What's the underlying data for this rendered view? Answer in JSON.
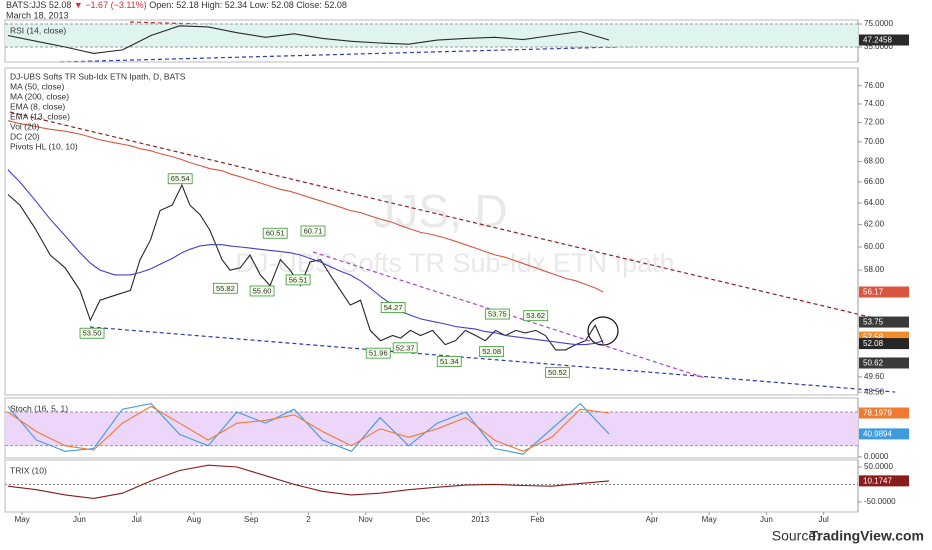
{
  "header": {
    "symbol": "BATS:JJS 52.08",
    "change": "▼ −1.67 (−3.11%)",
    "ohlc": "Open: 52.18  High: 52.34  Low: 52.08  Close: 52.08",
    "date": "March 18, 2013"
  },
  "watermark": {
    "ticker": "JJS, D",
    "name": "DJ-UBS Softs TR Sub-Idx ETN Ipath"
  },
  "source": {
    "label": "Source:",
    "name": "TradingView.com"
  },
  "chart_data": [
    {
      "type": "line",
      "log": true,
      "xlim": [
        -0.3,
        14.6
      ],
      "ylim": [
        48.3,
        78
      ],
      "categories": [
        "May",
        "Jun",
        "Jul",
        "Aug",
        "Sep",
        "2",
        "Nov",
        "Dec",
        "2013",
        "Feb",
        null,
        "Apr",
        "May",
        "Jun",
        "Jul"
      ],
      "x": [
        -0.25,
        -0.04,
        0.22,
        0.49,
        0.75,
        1.01,
        1.19,
        1.36,
        1.62,
        1.89,
        2.06,
        2.24,
        2.41,
        2.62,
        2.79,
        2.93,
        3.11,
        3.28,
        3.49,
        3.63,
        3.81,
        3.98,
        4.16,
        4.33,
        4.51,
        4.68,
        4.86,
        5.03,
        5.21,
        5.38,
        5.56,
        5.73,
        5.91,
        6.08,
        6.26,
        6.47,
        6.61,
        6.78,
        6.96,
        7.17,
        7.39,
        7.57,
        7.74,
        7.92,
        8.09,
        8.27,
        8.44,
        8.62,
        8.79,
        8.97,
        9.14,
        9.32,
        9.49,
        9.67,
        9.84,
        10.01,
        10.15
      ],
      "series": [
        {
          "name": "DJ-UBS Softs TR Sub-Idx ETN Ipath, D, BATS",
          "color": "#262626",
          "badge": true,
          "values": [
            64.8,
            63.8,
            61.7,
            59.3,
            58.2,
            56.3,
            53.9,
            55.5,
            55.9,
            56.3,
            58.9,
            60.6,
            63.3,
            63.8,
            65.7,
            63.8,
            62.9,
            61.5,
            58.9,
            58.0,
            58.2,
            59.3,
            57.6,
            56.7,
            58.9,
            58.0,
            56.7,
            58.7,
            58.9,
            57.6,
            56.3,
            55.1,
            55.5,
            53.1,
            52.3,
            52.7,
            52.5,
            53.1,
            52.7,
            53.1,
            52.0,
            52.3,
            53.1,
            52.7,
            52.3,
            53.1,
            52.7,
            53.1,
            52.9,
            53.1,
            52.7,
            51.6,
            51.6,
            52.0,
            52.3,
            53.5,
            52.08
          ]
        },
        {
          "name": "MA (50, close)",
          "color": "#4040c8",
          "badge": false,
          "values": [
            67.2,
            66,
            64.3,
            62.5,
            61,
            59.5,
            58.6,
            58,
            57.6,
            57.6,
            57.8,
            58.1,
            58.5,
            59,
            59.5,
            59.8,
            60.1,
            60.2,
            60.2,
            60.1,
            60,
            59.9,
            59.8,
            59.7,
            59.6,
            59.5,
            59.3,
            59,
            58.7,
            58.3,
            57.9,
            57.6,
            57.1,
            56.5,
            55.8,
            55.1,
            54.6,
            54.3,
            54,
            53.8,
            53.6,
            53.4,
            53.3,
            53.2,
            53,
            52.9,
            52.7,
            52.6,
            52.5,
            52.4,
            52.3,
            52.2,
            52.1,
            52,
            52,
            52.1,
            52.3
          ]
        },
        {
          "name": "MA (200, close)",
          "color": "#d9573f",
          "badge": true,
          "values": [
            72.2,
            71.9,
            71.6,
            71.3,
            71.1,
            70.8,
            70.5,
            70.2,
            69.9,
            69.6,
            69.3,
            69.1,
            68.8,
            68.5,
            68.2,
            67.9,
            67.6,
            67.3,
            67.1,
            66.8,
            66.5,
            66.2,
            65.9,
            65.6,
            65.3,
            65.1,
            64.8,
            64.5,
            64.2,
            63.9,
            63.6,
            63.3,
            63.1,
            62.8,
            62.5,
            62.2,
            61.9,
            61.6,
            61.3,
            61.1,
            60.8,
            60.5,
            60.2,
            59.9,
            59.6,
            59.3,
            59.1,
            58.8,
            58.5,
            58.2,
            57.9,
            57.6,
            57.3,
            57.1,
            56.8,
            56.5,
            56.17
          ]
        }
      ],
      "indicators": [
        "EMA (8, close)",
        "EMA (13, close)",
        "Vol (20)",
        "DC (20)",
        "Pivots HL (10, 10)"
      ],
      "yticks": [
        {
          "value": 76,
          "label": "76.00"
        },
        {
          "value": 74,
          "label": "74.00"
        },
        {
          "value": 72,
          "label": "72.00"
        },
        {
          "value": 70,
          "label": "70.00"
        },
        {
          "value": 68,
          "label": "68.00"
        },
        {
          "value": 66,
          "label": "66.00"
        },
        {
          "value": 64,
          "label": "64.00"
        },
        {
          "value": 62,
          "label": "62.00"
        },
        {
          "value": 60,
          "label": "60.00"
        },
        {
          "value": 58,
          "label": "58.00"
        },
        {
          "value": 49.6,
          "label": "49.60"
        },
        {
          "value": 48.5,
          "label": "48.50"
        }
      ],
      "price_labels": [
        {
          "value": 53.75,
          "color": "#3a3a3a"
        },
        {
          "value": 52.58,
          "color": "#f08c2a"
        },
        {
          "value": 50.62,
          "color": "#3a3a3a"
        }
      ],
      "pivot_highs": {
        "x": [
          2.76,
          4.42,
          5.08,
          3.55,
          4.19,
          4.82,
          6.48,
          8.3,
          8.97
        ],
        "values": [
          65.54,
          60.51,
          60.71,
          55.82,
          55.6,
          56.51,
          54.27,
          53.75,
          53.62
        ],
        "value_labels": [
          "65.54",
          "60.51",
          "60.71",
          "55.82",
          "55.60",
          "56.51",
          "54.27",
          "53.75",
          "53.62"
        ]
      },
      "pivot_lows": {
        "x": [
          1.22,
          6.22,
          6.69,
          8.2,
          7.46,
          9.35
        ],
        "values": [
          53.5,
          51.96,
          52.37,
          52.08,
          51.34,
          50.52
        ],
        "value_labels": [
          "53.50",
          "51.96",
          "52.37",
          "52.08",
          "51.34",
          "50.52"
        ]
      }
    },
    {
      "type": "line",
      "title": "RSI (14, close)",
      "xlim": [
        -0.3,
        14.6
      ],
      "ylim": [
        9,
        82
      ],
      "band_fill": "#dff3ef",
      "bands": [
        35,
        75
      ],
      "yticks": [
        {
          "value": 75,
          "label": "75.0000"
        },
        {
          "value": 35,
          "label": "35.0000"
        }
      ],
      "x": [
        -0.25,
        0.25,
        0.75,
        1.25,
        1.75,
        2.25,
        2.75,
        3.25,
        3.75,
        4.25,
        4.75,
        5.25,
        5.75,
        6.25,
        6.75,
        7.25,
        7.75,
        8.25,
        8.75,
        9.25,
        9.75,
        10.25
      ],
      "series": [
        {
          "name": "RSI",
          "color": "#2a2a2a",
          "badge": true,
          "values": [
            55,
            45,
            35,
            24,
            30,
            55,
            72,
            70,
            60,
            52,
            58,
            50,
            45,
            42,
            40,
            47,
            50,
            52,
            48,
            55,
            62,
            47.2458
          ]
        }
      ]
    },
    {
      "type": "line",
      "title": "Stoch (16, 5, 1)",
      "xlim": [
        -0.3,
        14.6
      ],
      "ylim": [
        -2,
        105
      ],
      "band_fill": "#ecd6fa",
      "bands": [
        20,
        80
      ],
      "yticks": [
        {
          "value": 0,
          "label": "0.0000"
        }
      ],
      "x": [
        -0.25,
        0.25,
        0.75,
        1.25,
        1.75,
        2.25,
        2.75,
        3.25,
        3.75,
        4.25,
        4.75,
        5.25,
        5.75,
        6.25,
        6.75,
        7.25,
        7.75,
        8.25,
        8.75,
        9.25,
        9.75,
        10.25
      ],
      "series": [
        {
          "color": "#3d9be0",
          "badge": true,
          "values": [
            90,
            30,
            10,
            15,
            85,
            95,
            40,
            20,
            80,
            60,
            85,
            30,
            10,
            70,
            20,
            60,
            80,
            15,
            5,
            50,
            95,
            40.9894
          ]
        },
        {
          "color": "#f07a30",
          "badge": true,
          "values": [
            80,
            45,
            20,
            12,
            60,
            90,
            60,
            30,
            60,
            65,
            75,
            45,
            20,
            50,
            35,
            50,
            70,
            30,
            10,
            35,
            85,
            78.1979
          ]
        }
      ]
    },
    {
      "type": "line",
      "title": "TRIX (10)",
      "xlim": [
        -0.3,
        14.6
      ],
      "ylim": [
        -79,
        70
      ],
      "hline": 0,
      "yticks": [
        {
          "value": 50,
          "label": "50.0000"
        },
        {
          "value": -50,
          "label": "-50.0000"
        }
      ],
      "x": [
        -0.25,
        0.25,
        0.75,
        1.25,
        1.75,
        2.25,
        2.75,
        3.25,
        3.75,
        4.25,
        4.75,
        5.25,
        5.75,
        6.25,
        6.75,
        7.25,
        7.75,
        8.25,
        8.75,
        9.25,
        9.75,
        10.25
      ],
      "series": [
        {
          "name": "TRIX",
          "color": "#8b1a1a",
          "badge": true,
          "values": [
            -5,
            -15,
            -30,
            -40,
            -25,
            10,
            40,
            55,
            50,
            25,
            0,
            -20,
            -30,
            -25,
            -15,
            -8,
            -2,
            0,
            -3,
            -5,
            3,
            10.1747
          ]
        }
      ]
    }
  ]
}
